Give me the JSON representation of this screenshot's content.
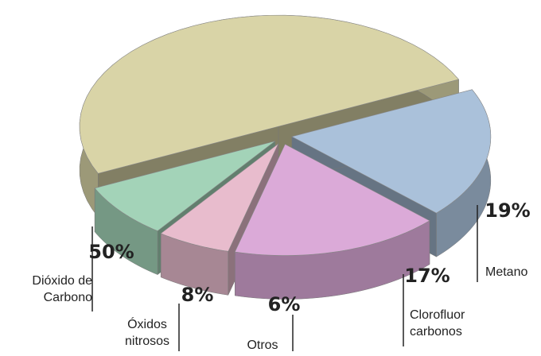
{
  "chart_data": {
    "type": "pie",
    "categories": [
      "Dióxido de\nCarbono",
      "Óxidos\nnitrosos",
      "Otros",
      "Clorofluor\ncarbonos",
      "Metano"
    ],
    "values": [
      50,
      8,
      6,
      17,
      19
    ],
    "value_labels": [
      "50%",
      "8%",
      "6%",
      "17%",
      "19%"
    ],
    "colors": [
      "#d9d4a7",
      "#a3d3b8",
      "#e8bccd",
      "#dbaad8",
      "#aac1da"
    ]
  }
}
